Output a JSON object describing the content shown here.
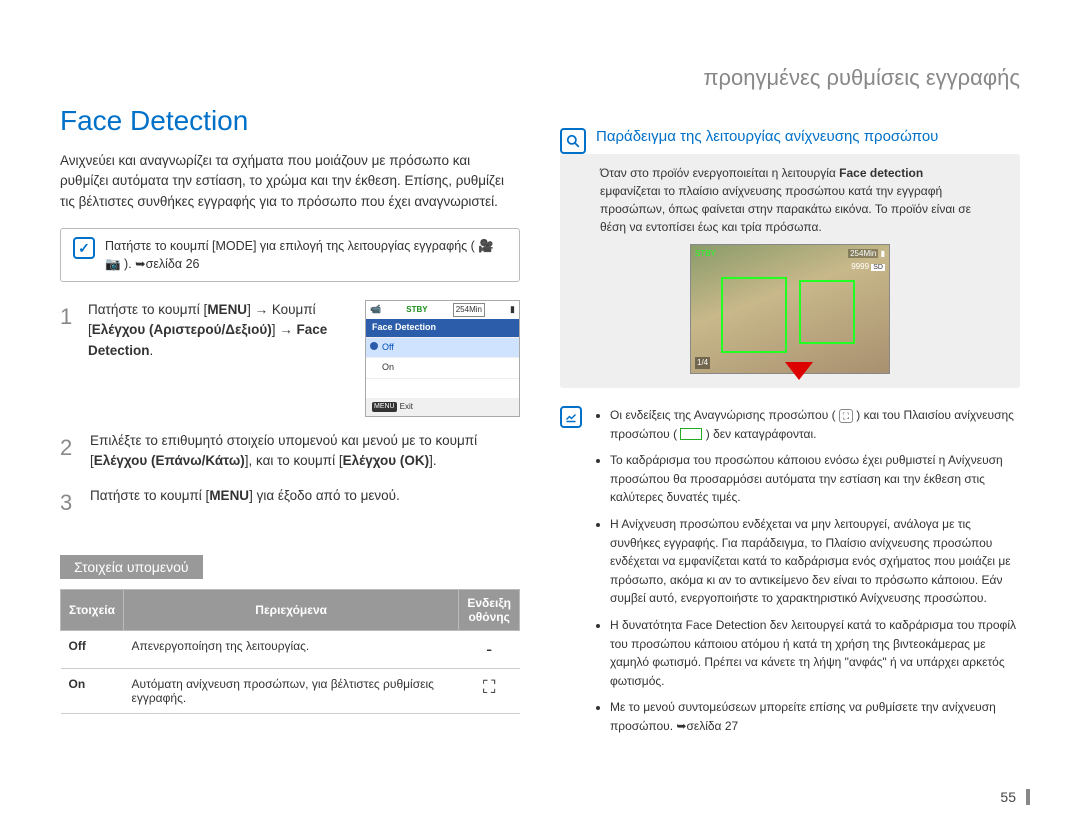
{
  "chapter_title": "προηγμένες ρυθμίσεις εγγραφής",
  "section_title": "Face Detection",
  "intro_text": "Ανιχνεύει και αναγνωρίζει τα σχήματα που μοιάζουν με πρόσωπο και ρυθμίζει αυτόματα την εστίαση, το χρώμα και την έκθεση. Επίσης, ρυθμίζει τις βέλτιστες συνθήκες εγγραφής για το πρόσωπο που έχει αναγνωριστεί.",
  "mode_tip": "Πατήστε το κουμπί [MODE] για επιλογή της λειτουργίας εγγραφής ( 🎥 📷 ). ➥σελίδα 26",
  "steps": [
    {
      "num": "1",
      "text_html": "Πατήστε το κουμπί [<b>MENU</b>] → Κουμπί [<b>Ελέγχου (Αριστερού/Δεξιού)</b>] → <b>Face Detection</b>."
    },
    {
      "num": "2",
      "text_html": "Επιλέξτε το επιθυμητό στοιχείο υπομενού και μενού με το κουμπί [<b>Ελέγχου (Επάνω/Κάτω)</b>], και το κουμπί [<b>Ελέγχου (OK)</b>]."
    },
    {
      "num": "3",
      "text_html": "Πατήστε το κουμπί [<b>MENU</b>] για έξοδο από το μενού."
    }
  ],
  "lcd": {
    "stby": "STBY",
    "time": "254Min",
    "title": "Face Detection",
    "opt_off": "Off",
    "opt_on": "On",
    "exit_btn": "MENU",
    "exit_label": "Exit"
  },
  "submenu_heading": "Στοιχεία υπομενού",
  "table": {
    "headers": [
      "Στοιχεία",
      "Περιεχόμενα",
      "Ενδειξη οθόνης"
    ],
    "rows": [
      {
        "item": "Off",
        "desc": "Απενεργοποίηση της λειτουργίας.",
        "icon": "-"
      },
      {
        "item": "On",
        "desc": "Αυτόματη ανίχνευση προσώπων, για βέλτιστες ρυθμίσεις εγγραφής.",
        "icon": "⛶"
      }
    ]
  },
  "example": {
    "title": "Παράδειγμα της λειτουργίας ανίχνευσης προσώπου",
    "body_pre": "Όταν στο προϊόν ενεργοποιείται η λειτουργία ",
    "body_bold": "Face detection",
    "body_post": " εμφανίζεται το πλαίσιο ανίχνευσης προσώπου κατά την εγγραφή προσώπων, όπως φαίνεται στην παρακάτω εικόνα. Το προϊόν είναι σε θέση να εντοπίσει έως και τρία πρόσωπα.",
    "photo": {
      "stby": "STBY",
      "time": "254Min",
      "count": "9999",
      "sd": "SD",
      "corner": "1/4"
    }
  },
  "notes": [
    "Οι ενδείξεις της Αναγνώρισης προσώπου ( ⛶ ) και του Πλαισίου ανίχνευσης προσώπου ( ▭ ) δεν καταγράφονται.",
    "Το καδράρισμα του προσώπου κάποιου ενόσω έχει ρυθμιστεί η Ανίχνευση προσώπου θα προσαρμόσει αυτόματα την εστίαση και την έκθεση στις καλύτερες δυνατές τιμές.",
    "Η Ανίχνευση προσώπου ενδέχεται να μην λειτουργεί, ανάλογα με τις συνθήκες εγγραφής. Για παράδειγμα, το Πλαίσιο ανίχνευσης προσώπου ενδέχεται να εμφανίζεται κατά το καδράρισμα ενός σχήματος που μοιάζει με πρόσωπο, ακόμα κι αν το αντικείμενο δεν είναι το πρόσωπο κάποιου. Εάν συμβεί αυτό, ενεργοποιήστε το χαρακτηριστικό Ανίχνευσης προσώπου.",
    "Η δυνατότητα Face Detection δεν λειτουργεί κατά το καδράρισμα του προφίλ του προσώπου κάποιου ατόμου ή κατά τη χρήση της βιντεοκάμερας με χαμηλό φωτισμό. Πρέπει να κάνετε τη λήψη \"ανφάς\" ή να υπάρχει αρκετός φωτισμός.",
    "Με το μενού συντομεύσεων μπορείτε επίσης να ρυθμίσετε την ανίχνευση προσώπου. ➥σελίδα 27"
  ],
  "page_num": "55",
  "colors": {
    "accent": "#0070c8",
    "gray_bg": "#efefef",
    "table_header": "#999999",
    "face_box": "#22ff22"
  }
}
